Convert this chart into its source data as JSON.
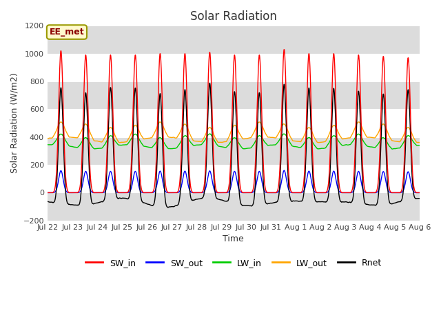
{
  "title": "Solar Radiation",
  "xlabel": "Time",
  "ylabel": "Solar Radiation (W/m2)",
  "ylim": [
    -200,
    1200
  ],
  "yticks": [
    -200,
    0,
    200,
    400,
    600,
    800,
    1000,
    1200
  ],
  "num_days": 15,
  "x_labels": [
    "Jul 22",
    "Jul 23",
    "Jul 24",
    "Jul 25",
    "Jul 26",
    "Jul 27",
    "Jul 28",
    "Jul 29",
    "Jul 30",
    "Jul 31",
    "Aug 1",
    "Aug 2",
    "Aug 3",
    "Aug 4",
    "Aug 5",
    "Aug 6"
  ],
  "annotation_text": "EE_met",
  "colors": {
    "SW_in": "#FF0000",
    "SW_out": "#0000FF",
    "LW_in": "#00CC00",
    "LW_out": "#FFA500",
    "Rnet": "#000000"
  },
  "fig_bg": "#FFFFFF",
  "plot_bg": "#FFFFFF",
  "band_color": "#DCDCDC",
  "points_per_day": 144,
  "SW_in_peak": 1000,
  "LW_in_base": 330,
  "LW_in_amp": 80,
  "LW_out_base": 380,
  "LW_out_amp": 110,
  "Rnet_night": -70,
  "title_fontsize": 12,
  "label_fontsize": 9,
  "tick_fontsize": 8
}
